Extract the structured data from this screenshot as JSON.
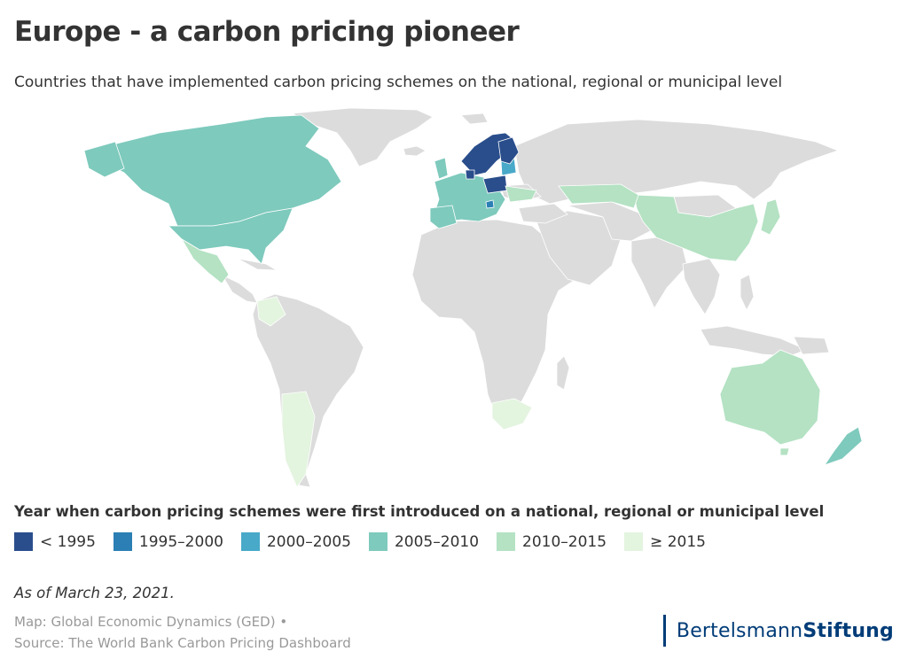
{
  "title": "Europe - a carbon pricing pioneer",
  "subtitle": "Countries that have implemented carbon pricing schemes on the national, regional or municipal level",
  "legend": {
    "title": "Year when carbon pricing schemes were first introduced on a national, regional or municipal level",
    "items": [
      {
        "label": "< 1995",
        "color": "#2a4e8c"
      },
      {
        "label": "1995–2000",
        "color": "#2b7fb4"
      },
      {
        "label": "2000–2005",
        "color": "#48a9c9"
      },
      {
        "label": "2005–2010",
        "color": "#7ecabd"
      },
      {
        "label": "2010–2015",
        "color": "#b4e2c3"
      },
      {
        "label": "≥ 2015",
        "color": "#e3f4df"
      }
    ]
  },
  "colors": {
    "no_data": "#dcdcdc",
    "border": "#ffffff"
  },
  "note": "As of March 23, 2021.",
  "credits": {
    "line1": "Map: Global Economic Dynamics (GED) •",
    "line2": "Source: The World Bank Carbon Pricing Dashboard"
  },
  "brand": {
    "part1": "Bertelsmann",
    "part2": "Stiftung"
  }
}
